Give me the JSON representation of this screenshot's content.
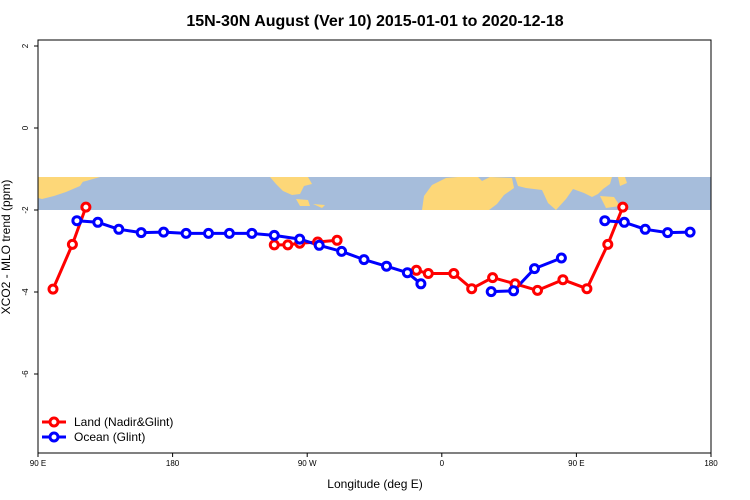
{
  "chart_data": {
    "type": "line",
    "title": "15N-30N August (Ver 10)   2015-01-01 to 2020-12-18",
    "xlabel": "Longitude (deg E)",
    "ylabel": "XCO2 - MLO trend (ppm)",
    "xlim": [
      90,
      540
    ],
    "ylim": [
      -8,
      2.2
    ],
    "x_ticks": [
      {
        "value": 90,
        "label": "90 E"
      },
      {
        "value": 180,
        "label": "180"
      },
      {
        "value": 270,
        "label": "90 W"
      },
      {
        "value": 360,
        "label": "0"
      },
      {
        "value": 450,
        "label": "90 E"
      },
      {
        "value": 540,
        "label": "180"
      }
    ],
    "y_ticks": [
      {
        "value": 2,
        "label": "2"
      },
      {
        "value": 0,
        "label": "0"
      },
      {
        "value": -2,
        "label": "-2"
      },
      {
        "value": -4,
        "label": "-4"
      },
      {
        "value": -6,
        "label": "-6"
      }
    ],
    "map_strip": {
      "ymin": -2.0,
      "ymax": -1.2,
      "ocean_color": "#a6bddb",
      "land_color": "#fdd778"
    },
    "legend_position": "bottom-left",
    "series": [
      {
        "name": "Land (Nadir&Glint)",
        "color": "#ff0000",
        "segments": [
          [
            [
              100,
              -3.93
            ],
            [
              113,
              -2.84
            ],
            [
              122,
              -1.93
            ]
          ],
          [
            [
              248,
              -2.85
            ],
            [
              257,
              -2.85
            ],
            [
              265,
              -2.81
            ],
            [
              277,
              -2.78
            ],
            [
              290,
              -2.74
            ]
          ],
          [
            [
              343,
              -3.47
            ],
            [
              351,
              -3.55
            ],
            [
              368,
              -3.55
            ],
            [
              380,
              -3.92
            ],
            [
              394,
              -3.65
            ],
            [
              409,
              -3.8
            ],
            [
              424,
              -3.96
            ],
            [
              441,
              -3.7
            ],
            [
              457,
              -3.92
            ],
            [
              471,
              -2.84
            ],
            [
              481,
              -1.93
            ]
          ]
        ]
      },
      {
        "name": "Ocean (Glint)",
        "color": "#0000ff",
        "segments": [
          [
            [
              116,
              -2.26
            ],
            [
              130,
              -2.3
            ],
            [
              144,
              -2.47
            ],
            [
              159,
              -2.55
            ],
            [
              174,
              -2.54
            ],
            [
              189,
              -2.57
            ],
            [
              204,
              -2.57
            ],
            [
              218,
              -2.57
            ],
            [
              233,
              -2.57
            ],
            [
              248,
              -2.62
            ],
            [
              265,
              -2.71
            ],
            [
              278,
              -2.86
            ],
            [
              293,
              -3.01
            ],
            [
              308,
              -3.21
            ],
            [
              323,
              -3.37
            ],
            [
              337,
              -3.53
            ],
            [
              346,
              -3.8
            ]
          ],
          [
            [
              393,
              -3.99
            ],
            [
              408,
              -3.97
            ],
            [
              422,
              -3.43
            ],
            [
              440,
              -3.17
            ]
          ],
          [
            [
              469,
              -2.26
            ],
            [
              482,
              -2.3
            ],
            [
              496,
              -2.47
            ],
            [
              511,
              -2.55
            ],
            [
              526,
              -2.54
            ]
          ]
        ]
      }
    ]
  }
}
